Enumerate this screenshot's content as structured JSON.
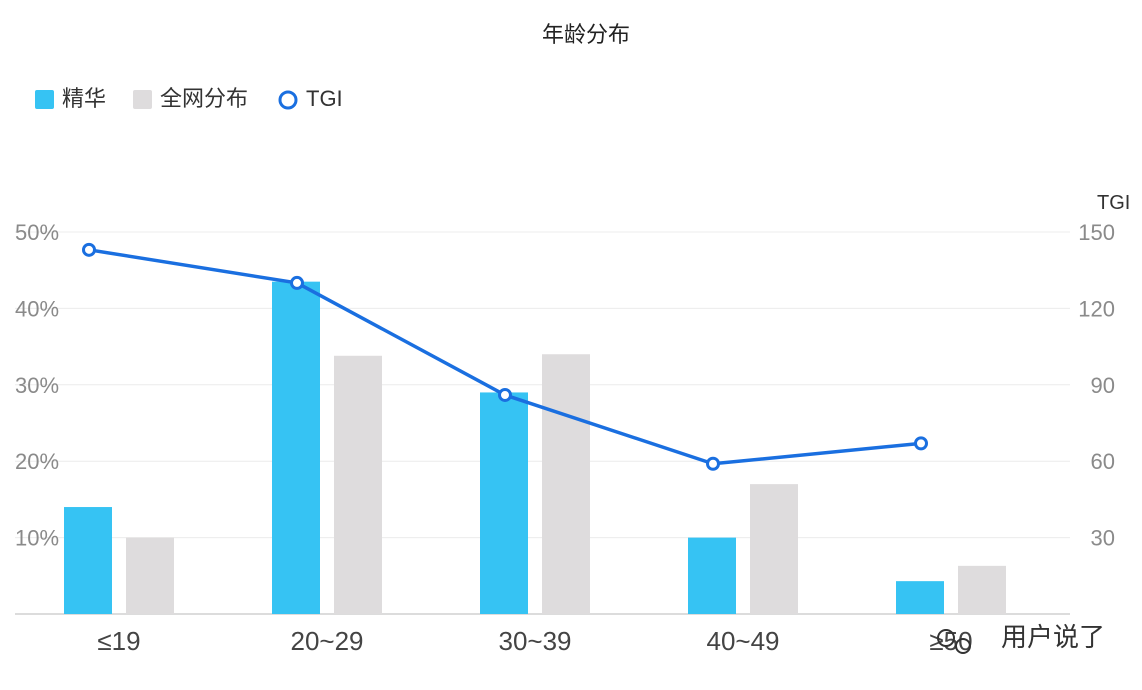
{
  "chart_data": {
    "type": "bar",
    "title": "年龄分布",
    "categories": [
      "≤19",
      "20~29",
      "30~39",
      "40~49",
      "≥50"
    ],
    "series": [
      {
        "name": "精华",
        "type": "bar",
        "axis": "left",
        "color": "#36c3f3",
        "values": [
          14,
          43.5,
          29,
          10,
          4.3
        ]
      },
      {
        "name": "全网分布",
        "type": "bar",
        "axis": "left",
        "color": "#dedcdd",
        "values": [
          10,
          33.8,
          34,
          17,
          6.3
        ]
      },
      {
        "name": "TGI",
        "type": "line",
        "axis": "right",
        "color": "#1a6fe0",
        "values": [
          143,
          130,
          86,
          59,
          67
        ]
      }
    ],
    "y_left": {
      "ticks": [
        "10%",
        "20%",
        "30%",
        "40%",
        "50%"
      ],
      "ylim": [
        0,
        50
      ]
    },
    "y_right": {
      "label": "TGI",
      "ticks": [
        "30",
        "60",
        "90",
        "120",
        "150"
      ],
      "ylim": [
        0,
        150
      ]
    },
    "legend": "top-left",
    "grid": true
  },
  "watermark": {
    "text": "用户说了"
  }
}
